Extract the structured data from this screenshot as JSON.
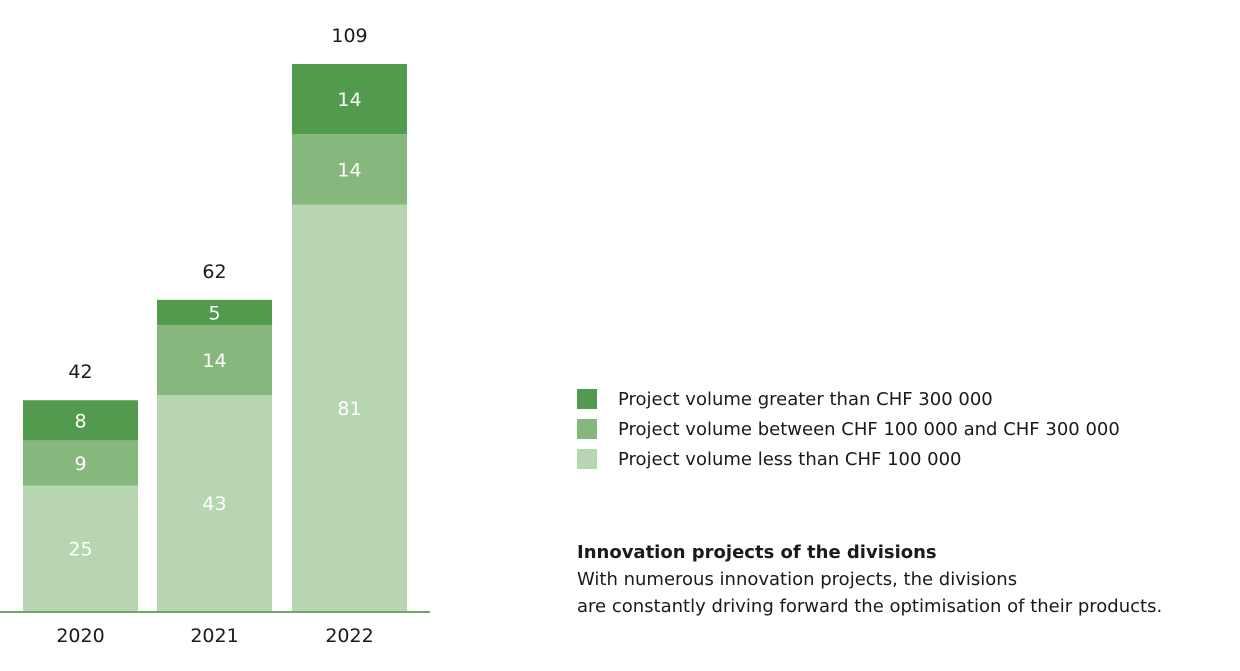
{
  "chart_data": {
    "type": "bar",
    "stacked": true,
    "categories": [
      "2020",
      "2021",
      "2022"
    ],
    "series": [
      {
        "name": "Project volume less than CHF 100 000",
        "values": [
          25,
          43,
          81
        ],
        "color": "#b7d5b0"
      },
      {
        "name": "Project volume between CHF 100 000 and CHF 300 000",
        "values": [
          9,
          14,
          14
        ],
        "color": "#86b77d"
      },
      {
        "name": "Project volume greater than CHF 300 000",
        "values": [
          8,
          5,
          14
        ],
        "color": "#529a4d"
      }
    ],
    "totals": [
      42,
      62,
      109
    ],
    "legend_order": [
      2,
      1,
      0
    ],
    "legend_position": "right",
    "grid": false,
    "ylim": [
      0,
      109
    ],
    "axis_color": "#6aaa63"
  },
  "caption": {
    "title": "Innovation projects of the divisions",
    "line1": "With numerous innovation projects, the divisions",
    "line2": "are constantly driving forward the optimisation of their products."
  }
}
